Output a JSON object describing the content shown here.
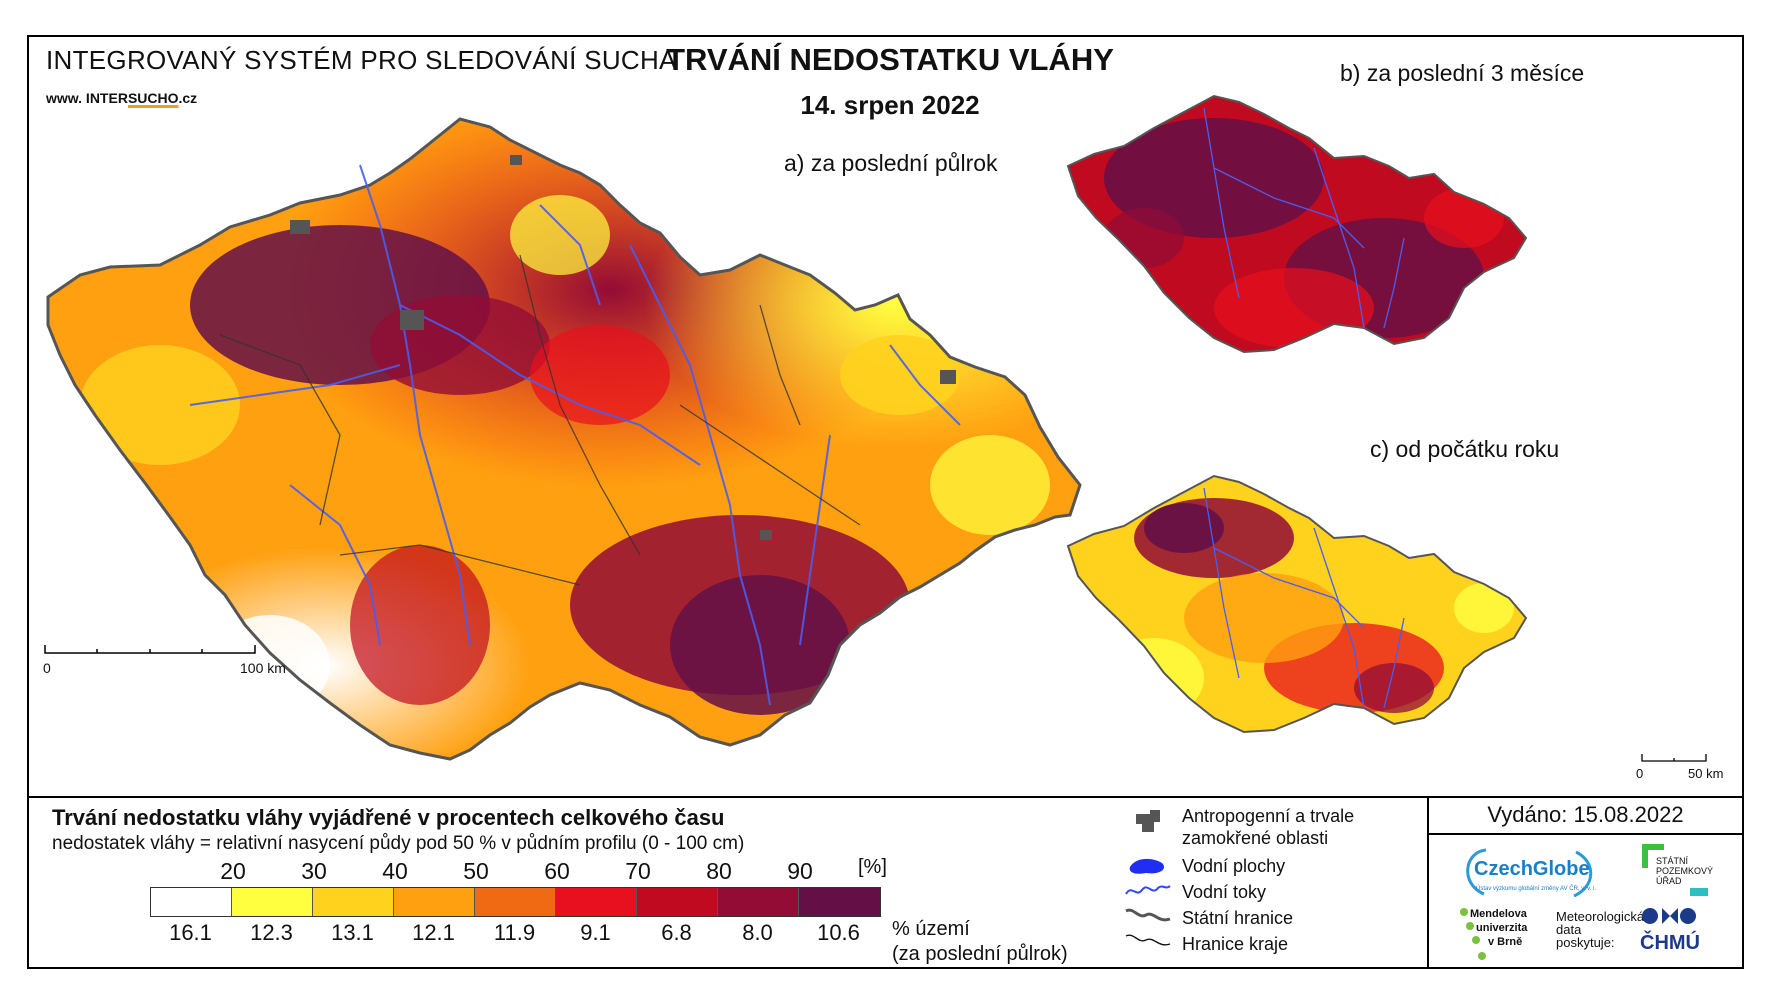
{
  "header": {
    "system_title": "INTEGROVANÝ SYSTÉM PRO SLEDOVÁNÍ SUCHA",
    "url_prefix": "www. INTER",
    "url_highlight": "SUCHO",
    "url_suffix": ".cz",
    "title": "TRVÁNÍ NEDOSTATKU VLÁHY",
    "date": "14. srpen 2022"
  },
  "maps": {
    "a_label": "a) za poslední půlrok",
    "b_label": "b) za poslední 3 měsíce",
    "c_label": "c) od počátku roku",
    "scale_main": {
      "start": "0",
      "end": "100 km"
    },
    "scale_small": {
      "start": "0",
      "end": "50 km"
    }
  },
  "legend": {
    "title": "Trvání nedostatku vláhy vyjádřené v procentech celkového času",
    "subtitle": "nedostatek vláhy = relativní nasycení půdy pod 50 % v půdním profilu (0 - 100 cm)",
    "unit": "[%]",
    "ticks": [
      "20",
      "30",
      "40",
      "50",
      "60",
      "70",
      "80",
      "90"
    ],
    "colors": [
      "#ffffff",
      "#ffff40",
      "#ffd21e",
      "#ffa010",
      "#f06a14",
      "#e8101e",
      "#c00a20",
      "#920c36",
      "#641046"
    ],
    "percentages": [
      "16.1",
      "12.3",
      "13.1",
      "12.1",
      "11.9",
      "9.1",
      "6.8",
      "8.0",
      "10.6"
    ],
    "area_label_1": "% území",
    "area_label_2": "(za poslední půlrok)"
  },
  "map_legend": {
    "anthropogenic": "Antropogenní a trvale",
    "anthropogenic2": "zamokřené oblasti",
    "water_areas": "Vodní plochy",
    "water_streams": "Vodní toky",
    "state_border": "Státní hranice",
    "region_border": "Hranice kraje"
  },
  "issued": "Vydáno: 15.08.2022",
  "logos": {
    "czechglobe": "CzechGlobe",
    "czechglobe_sub": "Ústav výzkumu globální změny AV ČR, v. v. i.",
    "spu_1": "STÁTNÍ",
    "spu_2": "POZEMKOVÝ",
    "spu_3": "ÚŘAD",
    "mendel_1": "Mendelova",
    "mendel_2": "univerzita",
    "mendel_3": "v Brně",
    "meteo_1": "Meteorologická",
    "meteo_2": "data",
    "meteo_3": "poskytuje:",
    "chmu": "ČHMÚ"
  }
}
